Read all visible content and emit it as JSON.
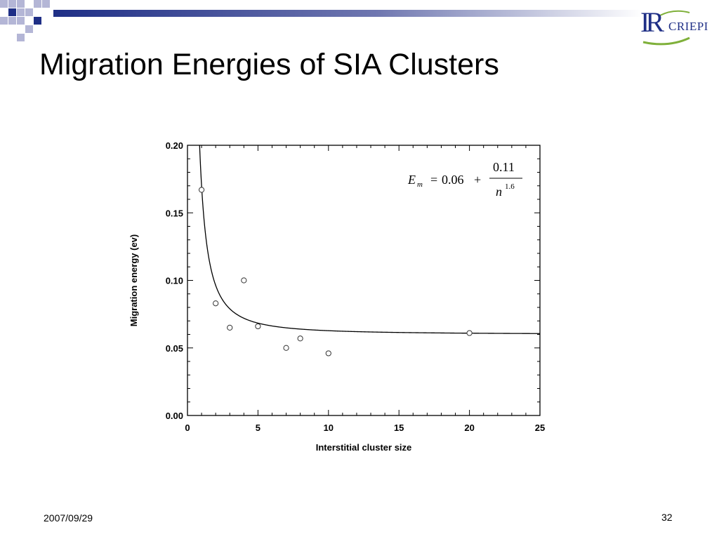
{
  "slide": {
    "title": "Migration Energies of SIA Clusters",
    "date": "2007/09/29",
    "page_number": "32"
  },
  "logo": {
    "mark": "IR",
    "name": "CRIEPI",
    "colors": {
      "primary": "#1f2f86",
      "accent": "#7fb03a"
    }
  },
  "theme": {
    "accent": "#1f2f86",
    "square_light": "#b4b6d6",
    "square_dark": "#1f2f86"
  },
  "chart_data": {
    "type": "scatter",
    "xlabel": "Interstitial cluster size",
    "ylabel": "Migration energy (ev)",
    "xlim": [
      0,
      25
    ],
    "ylim": [
      0,
      0.2
    ],
    "x_ticks": [
      "0",
      "5",
      "10",
      "15",
      "20",
      "25"
    ],
    "y_ticks": [
      "0.00",
      "0.05",
      "0.10",
      "0.15",
      "0.20"
    ],
    "grid": false,
    "points": [
      {
        "x": 1,
        "y": 0.167
      },
      {
        "x": 2,
        "y": 0.083
      },
      {
        "x": 3,
        "y": 0.065
      },
      {
        "x": 4,
        "y": 0.1
      },
      {
        "x": 5,
        "y": 0.066
      },
      {
        "x": 7,
        "y": 0.05
      },
      {
        "x": 8,
        "y": 0.057
      },
      {
        "x": 10,
        "y": 0.046
      },
      {
        "x": 20,
        "y": 0.061
      }
    ],
    "fit": {
      "description": "E_m = 0.06 + 0.11 / n^1.6",
      "constant": 0.06,
      "coefficient": 0.11,
      "exponent": 1.6
    },
    "equation": {
      "lhs_main": "E",
      "lhs_sub": "m",
      "equals": "=",
      "constant": "0.06",
      "plus": "+",
      "numerator": "0.11",
      "denom_var": "n",
      "denom_exp": "1.6"
    }
  }
}
